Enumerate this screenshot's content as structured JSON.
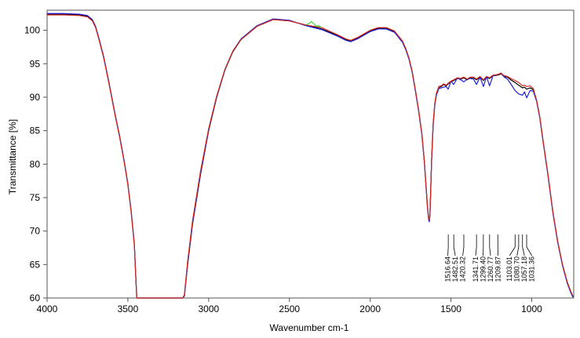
{
  "chart_data": {
    "type": "line",
    "title": "",
    "xlabel": "Wavenumber cm-1",
    "ylabel": "Transmittance [%]",
    "xlim": [
      4000,
      740
    ],
    "ylim": [
      60,
      103
    ],
    "x_reversed": true,
    "xticks": [
      4000,
      3500,
      3000,
      2500,
      2000,
      1500,
      1000
    ],
    "yticks": [
      60,
      65,
      70,
      75,
      80,
      85,
      90,
      95,
      100
    ],
    "grid": false,
    "legend": "none",
    "colors": {
      "black": "#000000",
      "blue": "#1f1fd6",
      "red": "#d42a1f",
      "green": "#1fd11f",
      "axis": "#555555"
    },
    "series": [
      {
        "color": "black",
        "x": [
          4000,
          3900,
          3800,
          3750,
          3720,
          3700,
          3680,
          3650,
          3620,
          3600,
          3580,
          3550,
          3520,
          3500,
          3480,
          3460,
          3445,
          3400,
          3300,
          3200,
          3160,
          3150,
          3130,
          3100,
          3050,
          3000,
          2950,
          2900,
          2850,
          2800,
          2700,
          2600,
          2500,
          2400,
          2300,
          2200,
          2150,
          2120,
          2080,
          2000,
          1950,
          1900,
          1850,
          1800,
          1780,
          1760,
          1740,
          1720,
          1700,
          1680,
          1665,
          1655,
          1645,
          1638,
          1634,
          1630,
          1626,
          1620,
          1610,
          1600,
          1590,
          1575,
          1560,
          1545,
          1530,
          1517,
          1500,
          1483,
          1460,
          1440,
          1420,
          1400,
          1380,
          1360,
          1342,
          1320,
          1299,
          1280,
          1261,
          1240,
          1210,
          1190,
          1170,
          1150,
          1130,
          1103,
          1081,
          1057,
          1045,
          1031,
          1010,
          990,
          970,
          950,
          930,
          900,
          870,
          840,
          810,
          780,
          760,
          745
        ],
        "y": [
          102.4,
          102.4,
          102.3,
          102.1,
          101.5,
          100.5,
          98.8,
          96.0,
          92.5,
          90.0,
          87.5,
          84.0,
          80.0,
          77.0,
          73.0,
          68.0,
          60.0,
          60.0,
          60.0,
          60.0,
          60.0,
          60.3,
          65.0,
          71.0,
          78.5,
          85.0,
          90.0,
          94.0,
          96.8,
          98.6,
          100.6,
          101.6,
          101.4,
          100.8,
          100.2,
          99.2,
          98.6,
          98.4,
          98.8,
          99.9,
          100.3,
          100.3,
          99.8,
          98.3,
          97.2,
          95.8,
          93.8,
          91.0,
          88.0,
          84.5,
          80.5,
          77.0,
          73.5,
          71.8,
          71.6,
          72.5,
          75.5,
          80.5,
          86.0,
          89.0,
          90.5,
          91.5,
          91.6,
          91.9,
          91.7,
          92.0,
          92.3,
          92.5,
          92.8,
          92.7,
          92.9,
          92.6,
          92.9,
          92.9,
          92.6,
          93.0,
          92.5,
          93.0,
          92.8,
          93.2,
          93.3,
          93.5,
          93.1,
          93.0,
          92.6,
          92.2,
          91.8,
          91.4,
          91.5,
          91.2,
          91.4,
          91.1,
          89.5,
          87.0,
          83.5,
          78.5,
          73.0,
          68.5,
          65.0,
          62.3,
          61.0,
          60.2
        ]
      },
      {
        "color": "blue",
        "x": [
          4000,
          3900,
          3800,
          3750,
          3720,
          3700,
          3680,
          3650,
          3620,
          3600,
          3580,
          3550,
          3520,
          3500,
          3480,
          3460,
          3445,
          3400,
          3300,
          3200,
          3160,
          3150,
          3130,
          3100,
          3050,
          3000,
          2950,
          2900,
          2850,
          2800,
          2700,
          2600,
          2500,
          2400,
          2300,
          2200,
          2150,
          2120,
          2080,
          2000,
          1950,
          1900,
          1850,
          1800,
          1780,
          1760,
          1740,
          1720,
          1700,
          1680,
          1665,
          1655,
          1645,
          1638,
          1634,
          1630,
          1626,
          1620,
          1610,
          1600,
          1590,
          1575,
          1560,
          1545,
          1530,
          1517,
          1500,
          1483,
          1460,
          1440,
          1420,
          1400,
          1380,
          1360,
          1342,
          1320,
          1299,
          1280,
          1261,
          1240,
          1210,
          1190,
          1170,
          1150,
          1130,
          1103,
          1081,
          1057,
          1045,
          1031,
          1010,
          990,
          970,
          950,
          930,
          900,
          870,
          840,
          810,
          780,
          760,
          745
        ],
        "y": [
          102.5,
          102.5,
          102.4,
          102.2,
          101.6,
          100.6,
          98.9,
          96.1,
          92.6,
          90.1,
          87.6,
          84.1,
          80.1,
          77.1,
          73.1,
          68.1,
          60.0,
          60.0,
          60.0,
          60.0,
          60.0,
          60.4,
          65.1,
          71.1,
          78.6,
          85.1,
          90.1,
          94.1,
          96.9,
          98.7,
          100.7,
          101.7,
          101.5,
          100.7,
          100.1,
          99.1,
          98.5,
          98.3,
          98.7,
          99.8,
          100.2,
          100.2,
          99.7,
          98.2,
          97.1,
          95.7,
          93.7,
          90.9,
          87.9,
          84.4,
          80.4,
          76.9,
          73.4,
          71.7,
          71.4,
          72.3,
          75.3,
          80.3,
          85.8,
          88.8,
          90.3,
          91.3,
          91.4,
          91.5,
          91.6,
          91.2,
          92.4,
          91.9,
          92.9,
          92.6,
          92.3,
          92.7,
          92.8,
          92.7,
          91.9,
          93.0,
          91.6,
          93.1,
          91.7,
          93.2,
          93.4,
          93.6,
          93.0,
          92.7,
          92.0,
          91.0,
          90.5,
          90.3,
          90.8,
          89.9,
          91.0,
          90.9,
          89.4,
          86.9,
          83.4,
          78.4,
          72.9,
          68.4,
          64.9,
          62.2,
          60.9,
          60.1
        ]
      },
      {
        "color": "red",
        "x": [
          4000,
          3900,
          3800,
          3750,
          3720,
          3700,
          3680,
          3650,
          3620,
          3600,
          3580,
          3550,
          3520,
          3500,
          3480,
          3460,
          3445,
          3400,
          3300,
          3200,
          3160,
          3150,
          3130,
          3100,
          3050,
          3000,
          2950,
          2900,
          2850,
          2800,
          2700,
          2600,
          2500,
          2400,
          2300,
          2200,
          2150,
          2120,
          2080,
          2000,
          1950,
          1900,
          1850,
          1800,
          1780,
          1760,
          1740,
          1720,
          1700,
          1680,
          1665,
          1655,
          1645,
          1638,
          1634,
          1630,
          1626,
          1620,
          1610,
          1600,
          1590,
          1575,
          1560,
          1545,
          1530,
          1517,
          1500,
          1483,
          1460,
          1440,
          1420,
          1400,
          1380,
          1360,
          1342,
          1320,
          1299,
          1280,
          1261,
          1240,
          1210,
          1190,
          1170,
          1150,
          1130,
          1103,
          1081,
          1057,
          1045,
          1031,
          1010,
          990,
          970,
          950,
          930,
          900,
          870,
          840,
          810,
          780,
          760,
          745
        ],
        "y": [
          102.3,
          102.3,
          102.2,
          102.0,
          101.4,
          100.4,
          98.7,
          95.9,
          92.4,
          89.9,
          87.4,
          83.9,
          79.9,
          76.9,
          72.9,
          67.9,
          60.0,
          60.0,
          60.0,
          60.0,
          60.0,
          60.5,
          65.5,
          71.5,
          79.0,
          85.3,
          90.2,
          94.1,
          96.9,
          98.6,
          100.6,
          101.6,
          101.4,
          100.8,
          100.4,
          99.3,
          98.7,
          98.5,
          98.9,
          100.0,
          100.4,
          100.4,
          99.9,
          98.4,
          97.3,
          95.9,
          93.9,
          91.1,
          88.1,
          84.6,
          80.6,
          77.1,
          73.6,
          71.9,
          71.7,
          72.6,
          75.6,
          80.6,
          86.1,
          89.1,
          90.6,
          91.6,
          91.7,
          92.0,
          91.8,
          92.1,
          92.4,
          92.6,
          92.9,
          92.8,
          93.0,
          92.7,
          93.0,
          93.0,
          92.7,
          93.1,
          92.6,
          93.1,
          92.9,
          93.3,
          93.4,
          93.6,
          93.2,
          93.1,
          92.8,
          92.5,
          92.2,
          91.7,
          91.8,
          91.6,
          91.7,
          91.3,
          89.6,
          87.1,
          83.6,
          78.6,
          73.1,
          68.6,
          65.1,
          62.4,
          61.1,
          60.3
        ]
      },
      {
        "color": "green",
        "x": [
          2400,
          2380,
          2365,
          2350,
          2335,
          2320,
          2300
        ],
        "y": [
          100.8,
          101.0,
          101.3,
          101.0,
          100.6,
          100.7,
          100.4
        ]
      }
    ],
    "annotations": [
      {
        "label": "1516.64",
        "x": 1516.64
      },
      {
        "label": "1482.51",
        "x": 1482.51
      },
      {
        "label": "1420.32",
        "x": 1420.32
      },
      {
        "label": "1341.71",
        "x": 1341.71
      },
      {
        "label": "1299.40",
        "x": 1299.4
      },
      {
        "label": "1260.77",
        "x": 1260.77
      },
      {
        "label": "1209.87",
        "x": 1209.87
      },
      {
        "label": "1103.01",
        "x": 1103.01
      },
      {
        "label": "1080.70",
        "x": 1080.7
      },
      {
        "label": "1057.18",
        "x": 1057.18
      },
      {
        "label": "1031.36",
        "x": 1031.36
      }
    ]
  }
}
